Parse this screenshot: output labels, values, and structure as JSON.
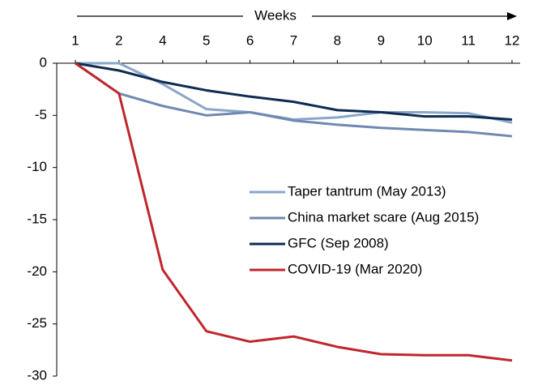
{
  "chart_data": {
    "type": "line",
    "x_label": "Weeks",
    "categories": [
      "1",
      "2",
      "4",
      "5",
      "6",
      "7",
      "8",
      "9",
      "10",
      "11",
      "12"
    ],
    "series": [
      {
        "name": "Taper tantrum (May 2013)",
        "color": "#8aa6c9",
        "values": [
          0,
          0,
          -2.0,
          -4.4,
          -4.7,
          -5.4,
          -5.2,
          -4.7,
          -4.7,
          -4.8,
          -5.7
        ]
      },
      {
        "name": "China market scare (Aug 2015)",
        "color": "#7089b0",
        "values": [
          0,
          -2.9,
          -4.1,
          -5.0,
          -4.7,
          -5.5,
          -5.9,
          -6.2,
          -6.4,
          -6.6,
          -7.0
        ]
      },
      {
        "name": "GFC (Sep 2008)",
        "color": "#0e2b52",
        "values": [
          0,
          -0.7,
          -1.8,
          -2.6,
          -3.2,
          -3.7,
          -4.5,
          -4.7,
          -5.1,
          -5.1,
          -5.4
        ]
      },
      {
        "name": "COVID-19 (Mar 2020)",
        "color": "#c0262d",
        "values": [
          0,
          -2.9,
          -19.8,
          -25.7,
          -26.7,
          -26.2,
          -27.2,
          -27.9,
          -28.0,
          -28.0,
          -28.5
        ]
      }
    ],
    "ylim": [
      -30,
      0
    ],
    "yticks": [
      0,
      -5,
      -10,
      -15,
      -20,
      -25,
      -30
    ],
    "grid": false
  }
}
